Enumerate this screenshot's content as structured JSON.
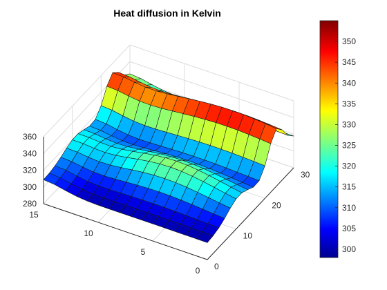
{
  "chart_data": {
    "type": "surface",
    "title": "Heat diffusion in Kelvin",
    "xlabel": "",
    "ylabel": "",
    "zlabel": "",
    "x_ticks": [
      "0",
      "10",
      "20",
      "30"
    ],
    "y_ticks": [
      "0",
      "5",
      "10",
      "15"
    ],
    "z_ticks": [
      "280",
      "300",
      "320",
      "340",
      "360"
    ],
    "xlim": [
      0,
      30
    ],
    "ylim": [
      0,
      15
    ],
    "zlim": [
      280,
      360
    ],
    "grid": true,
    "colormap": "jet",
    "colorbar": {
      "location": "right",
      "ticks": [
        "300",
        "305",
        "310",
        "315",
        "320",
        "325",
        "330",
        "335",
        "340",
        "345",
        "350"
      ],
      "clim": [
        298,
        355
      ]
    },
    "surface": {
      "grid_size": [
        15,
        15
      ],
      "description": "Temperature field: warm ridge (~355 K) near x≈25, y≈0–10; raised plateau (~330 K) around x≈10–15; low trough (~300 K) near x≈0 and back edge; slight dip near x≈30.",
      "samples": [
        {
          "x": 0,
          "y": 15,
          "z": 305
        },
        {
          "x": 0,
          "y": 0,
          "z": 305
        },
        {
          "x": 10,
          "y": 5,
          "z": 330
        },
        {
          "x": 20,
          "y": 5,
          "z": 345
        },
        {
          "x": 25,
          "y": 5,
          "z": 355
        },
        {
          "x": 30,
          "y": 5,
          "z": 322
        },
        {
          "x": 30,
          "y": 15,
          "z": 318
        },
        {
          "x": 15,
          "y": 15,
          "z": 305
        }
      ]
    }
  }
}
